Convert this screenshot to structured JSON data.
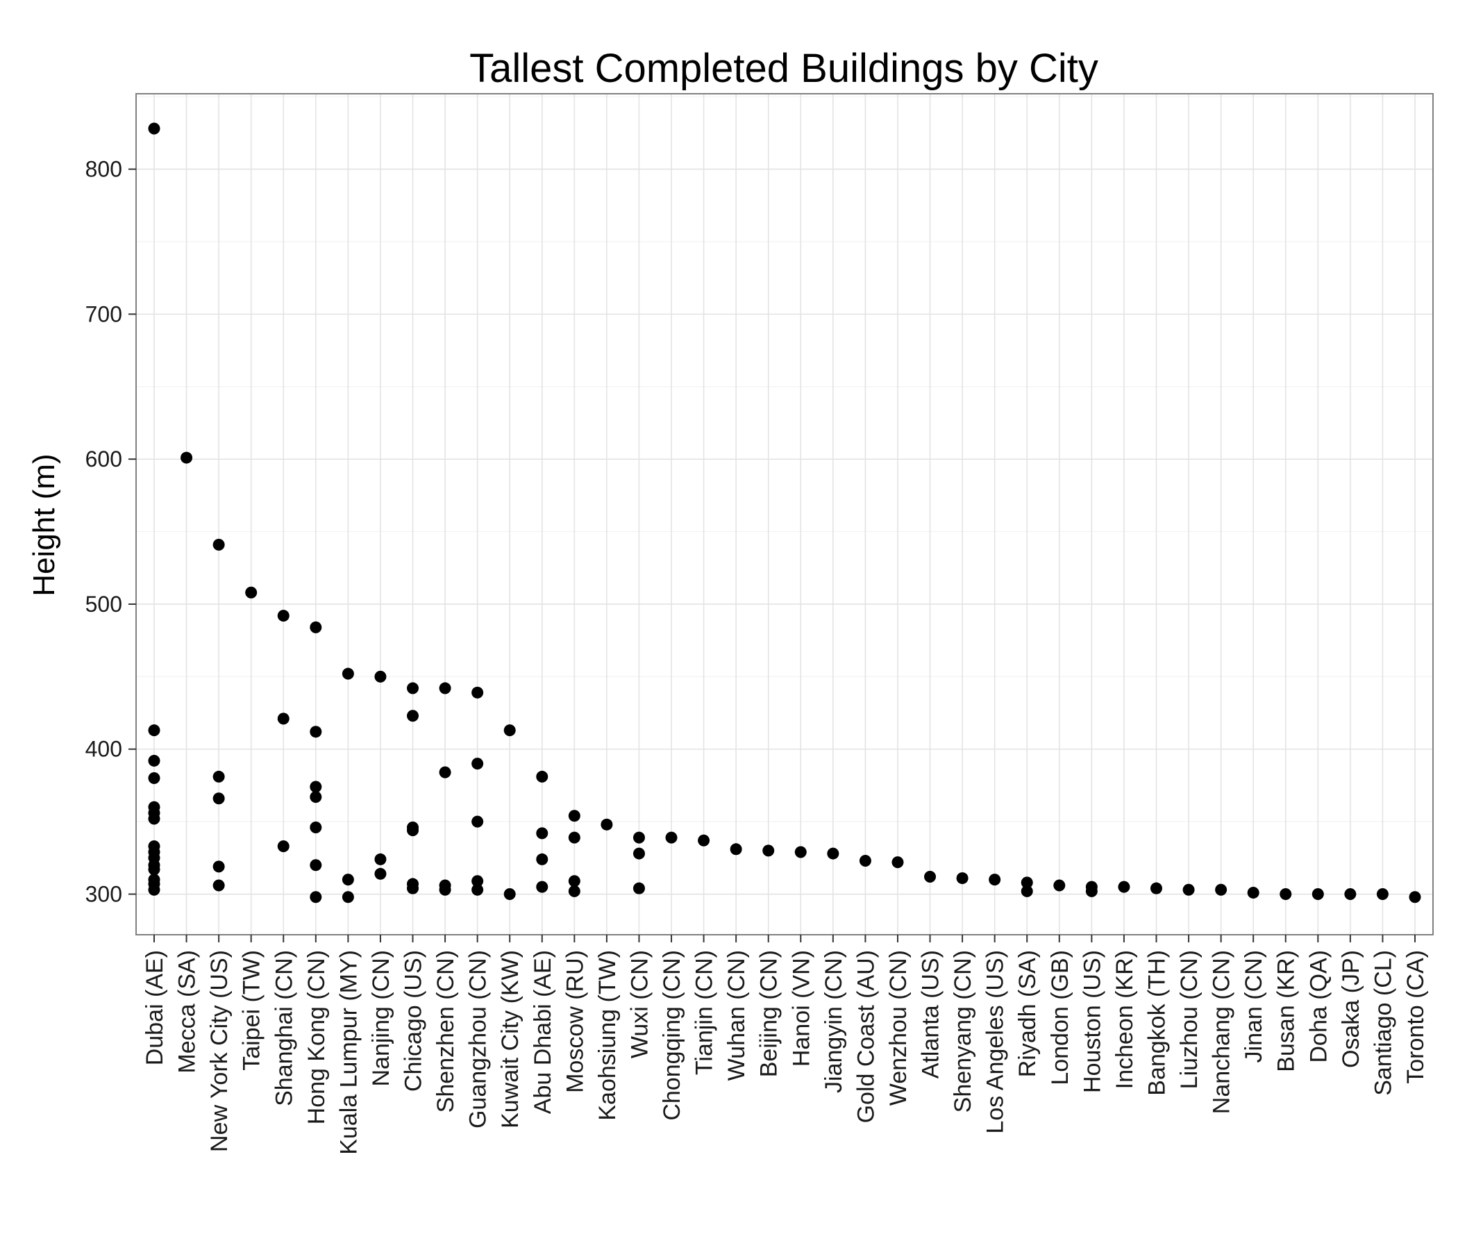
{
  "chart_data": {
    "type": "scatter",
    "title": "Tallest Completed Buildings by City",
    "xlabel": "",
    "ylabel": "Height (m)",
    "ylim": [
      272,
      852
    ],
    "yticks": [
      300,
      400,
      500,
      600,
      700,
      800
    ],
    "grid": true,
    "legend": "none",
    "point_color": "#000000",
    "categories": [
      "Dubai (AE)",
      "Mecca (SA)",
      "New York City (US)",
      "Taipei (TW)",
      "Shanghai (CN)",
      "Hong Kong (CN)",
      "Kuala Lumpur (MY)",
      "Nanjing (CN)",
      "Chicago (US)",
      "Shenzhen (CN)",
      "Guangzhou (CN)",
      "Kuwait City (KW)",
      "Abu Dhabi (AE)",
      "Moscow (RU)",
      "Kaohsiung (TW)",
      "Wuxi (CN)",
      "Chongqing (CN)",
      "Tianjin (CN)",
      "Wuhan (CN)",
      "Beijing (CN)",
      "Hanoi (VN)",
      "Jiangyin (CN)",
      "Gold Coast (AU)",
      "Wenzhou (CN)",
      "Atlanta (US)",
      "Shenyang (CN)",
      "Los Angeles (US)",
      "Riyadh (SA)",
      "London (GB)",
      "Houston (US)",
      "Incheon (KR)",
      "Bangkok (TH)",
      "Liuzhou (CN)",
      "Nanchang (CN)",
      "Jinan (CN)",
      "Busan (KR)",
      "Doha (QA)",
      "Osaka (JP)",
      "Santiago (CL)",
      "Toronto (CA)"
    ],
    "points": [
      {
        "x": "Dubai (AE)",
        "y": [
          828,
          413,
          392,
          380,
          360,
          356,
          352,
          333,
          329,
          325,
          320,
          317,
          310,
          307,
          303
        ]
      },
      {
        "x": "Mecca (SA)",
        "y": [
          601
        ]
      },
      {
        "x": "New York City (US)",
        "y": [
          541,
          381,
          366,
          319,
          306
        ]
      },
      {
        "x": "Taipei (TW)",
        "y": [
          508
        ]
      },
      {
        "x": "Shanghai (CN)",
        "y": [
          492,
          421,
          333
        ]
      },
      {
        "x": "Hong Kong (CN)",
        "y": [
          484,
          412,
          374,
          367,
          346,
          320,
          298
        ]
      },
      {
        "x": "Kuala Lumpur (MY)",
        "y": [
          452,
          310,
          298
        ]
      },
      {
        "x": "Nanjing (CN)",
        "y": [
          450,
          324,
          314
        ]
      },
      {
        "x": "Chicago (US)",
        "y": [
          442,
          423,
          346,
          344,
          307,
          304
        ]
      },
      {
        "x": "Shenzhen (CN)",
        "y": [
          442,
          384,
          306,
          303
        ]
      },
      {
        "x": "Guangzhou (CN)",
        "y": [
          439,
          390,
          350,
          309,
          303
        ]
      },
      {
        "x": "Kuwait City (KW)",
        "y": [
          413,
          300
        ]
      },
      {
        "x": "Abu Dhabi (AE)",
        "y": [
          381,
          342,
          324,
          305
        ]
      },
      {
        "x": "Moscow (RU)",
        "y": [
          354,
          339,
          309,
          302
        ]
      },
      {
        "x": "Kaohsiung (TW)",
        "y": [
          348
        ]
      },
      {
        "x": "Wuxi (CN)",
        "y": [
          339,
          328,
          304
        ]
      },
      {
        "x": "Chongqing (CN)",
        "y": [
          339
        ]
      },
      {
        "x": "Tianjin (CN)",
        "y": [
          337
        ]
      },
      {
        "x": "Wuhan (CN)",
        "y": [
          331
        ]
      },
      {
        "x": "Beijing (CN)",
        "y": [
          330
        ]
      },
      {
        "x": "Hanoi (VN)",
        "y": [
          329
        ]
      },
      {
        "x": "Jiangyin (CN)",
        "y": [
          328
        ]
      },
      {
        "x": "Gold Coast (AU)",
        "y": [
          323
        ]
      },
      {
        "x": "Wenzhou (CN)",
        "y": [
          322
        ]
      },
      {
        "x": "Atlanta (US)",
        "y": [
          312
        ]
      },
      {
        "x": "Shenyang (CN)",
        "y": [
          311
        ]
      },
      {
        "x": "Los Angeles (US)",
        "y": [
          310
        ]
      },
      {
        "x": "Riyadh (SA)",
        "y": [
          308,
          302
        ]
      },
      {
        "x": "London (GB)",
        "y": [
          306
        ]
      },
      {
        "x": "Houston (US)",
        "y": [
          305,
          302
        ]
      },
      {
        "x": "Incheon (KR)",
        "y": [
          305
        ]
      },
      {
        "x": "Bangkok (TH)",
        "y": [
          304
        ]
      },
      {
        "x": "Liuzhou (CN)",
        "y": [
          303
        ]
      },
      {
        "x": "Nanchang (CN)",
        "y": [
          303
        ]
      },
      {
        "x": "Jinan (CN)",
        "y": [
          301
        ]
      },
      {
        "x": "Busan (KR)",
        "y": [
          300
        ]
      },
      {
        "x": "Doha (QA)",
        "y": [
          300
        ]
      },
      {
        "x": "Osaka (JP)",
        "y": [
          300
        ]
      },
      {
        "x": "Santiago (CL)",
        "y": [
          300
        ]
      },
      {
        "x": "Toronto (CA)",
        "y": [
          298
        ]
      }
    ]
  }
}
